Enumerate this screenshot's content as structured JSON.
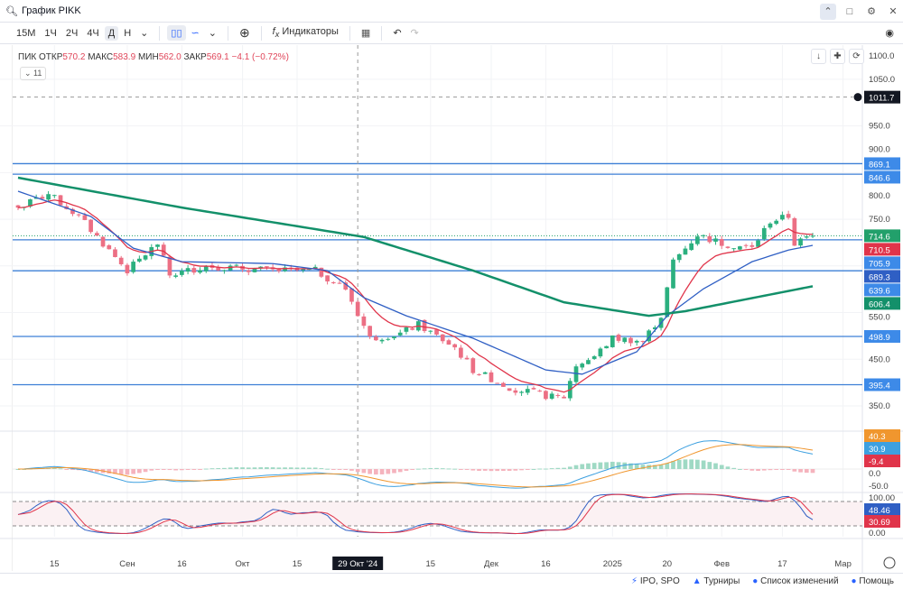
{
  "window": {
    "title": "График PIKK"
  },
  "toolbar": {
    "intervals": [
      "15М",
      "1Ч",
      "2Ч",
      "4Ч",
      "Д",
      "Н"
    ],
    "active_interval": "Д",
    "indicators_label": "Индикаторы"
  },
  "legend": {
    "symbol": "ПИК",
    "open_label": "ОТКР",
    "open": "570.2",
    "high_label": "МАКС",
    "high": "583.9",
    "low_label": "МИН",
    "low": "562.0",
    "close_label": "ЗАКР",
    "close": "569.1",
    "change": "−4.1 (−0.72%)",
    "collapse_count": "11"
  },
  "footer": {
    "items": [
      "IPO, SPO",
      "Турниры",
      "Список изменений",
      "Помощь"
    ]
  },
  "colors": {
    "up": "#2bb07f",
    "down": "#ec6f84",
    "level": "#3d7fd6",
    "ma_red": "#e0344a",
    "ma_blue": "#2f5fc4",
    "ma_green": "#13906a"
  },
  "chart_data": {
    "type": "candlestick",
    "symbol": "PIKK",
    "n_days": 132,
    "price_ylim": [
      350,
      1100
    ],
    "price_ticks": [
      "1100.0",
      "1050.0",
      "950.0",
      "900.0",
      "800.0",
      "750.0",
      "550.0",
      "450.0",
      "350.0"
    ],
    "close_path": [
      [
        0,
        775
      ],
      [
        5,
        804
      ],
      [
        10,
        756
      ],
      [
        18,
        640
      ],
      [
        23,
        698
      ],
      [
        25,
        630
      ],
      [
        31,
        650
      ],
      [
        42,
        640
      ],
      [
        49,
        640
      ],
      [
        54,
        601
      ],
      [
        58,
        495
      ],
      [
        63,
        505
      ],
      [
        66,
        524
      ],
      [
        72,
        475
      ],
      [
        75,
        427
      ],
      [
        81,
        389
      ],
      [
        88,
        369
      ],
      [
        90,
        369
      ],
      [
        92,
        437
      ],
      [
        95,
        456
      ],
      [
        98,
        495
      ],
      [
        103,
        489
      ],
      [
        106,
        543
      ],
      [
        108,
        659
      ],
      [
        112,
        717
      ],
      [
        116,
        698
      ],
      [
        121,
        688
      ],
      [
        124,
        746
      ],
      [
        127,
        756
      ],
      [
        128,
        698
      ],
      [
        131,
        714.6
      ]
    ],
    "ma_blue": [
      [
        0,
        810
      ],
      [
        12,
        756
      ],
      [
        19,
        688
      ],
      [
        27,
        659
      ],
      [
        42,
        655
      ],
      [
        51,
        640
      ],
      [
        57,
        582
      ],
      [
        64,
        543
      ],
      [
        75,
        495
      ],
      [
        87,
        427
      ],
      [
        93,
        418
      ],
      [
        102,
        466
      ],
      [
        107,
        543
      ],
      [
        113,
        601
      ],
      [
        121,
        659
      ],
      [
        127,
        684
      ],
      [
        131,
        694
      ]
    ],
    "ma_green": [
      [
        0,
        839
      ],
      [
        27,
        775
      ],
      [
        57,
        712
      ],
      [
        75,
        640
      ],
      [
        90,
        572
      ],
      [
        104,
        543
      ],
      [
        110,
        553
      ],
      [
        131,
        606.4
      ]
    ],
    "levels": [
      {
        "price": 869.1,
        "label": "869.1"
      },
      {
        "price": 846.6,
        "label": "846.6"
      },
      {
        "price": 705.9,
        "label": "705.9"
      },
      {
        "price": 639.6,
        "label": "639.6"
      },
      {
        "price": 498.9,
        "label": "498.9"
      },
      {
        "price": 395.4,
        "label": "395.4"
      }
    ],
    "price_labels": [
      {
        "price": 714.6,
        "label": "714.6",
        "color": "#22a06b"
      },
      {
        "price": 710.5,
        "label": "710.5",
        "color": "#e0344a"
      },
      {
        "price": 689.3,
        "label": "689.3",
        "color": "#2f5fc4"
      },
      {
        "price": 606.4,
        "label": "606.4",
        "color": "#13906a"
      }
    ],
    "crosshair": {
      "price_label": "1011.7",
      "price": 1011.7,
      "date_label": "29 Окт '24",
      "day": 56
    },
    "x_ticks": [
      [
        6,
        "15"
      ],
      [
        18,
        "Сен"
      ],
      [
        27,
        "16"
      ],
      [
        37,
        "Окт"
      ],
      [
        46,
        "15"
      ],
      [
        68,
        "15"
      ],
      [
        78,
        "Дек"
      ],
      [
        87,
        "16"
      ],
      [
        98,
        "2025"
      ],
      [
        107,
        "20"
      ],
      [
        116,
        "Фев"
      ],
      [
        126,
        "17"
      ],
      [
        136,
        "Мар"
      ]
    ],
    "macd": {
      "ticks": [
        "0.0",
        "-50.0"
      ],
      "labels": [
        {
          "v": "40.3",
          "color": "#f0962e"
        },
        {
          "v": "30.9",
          "color": "#3da0e0"
        },
        {
          "v": "-9.4",
          "color": "#e0344a"
        }
      ]
    },
    "stoch": {
      "ticks": [
        "100.00",
        "0.00"
      ],
      "bands": [
        80,
        20
      ],
      "labels": [
        {
          "v": "48.46",
          "color": "#2f5fc4"
        },
        {
          "v": "30.69",
          "color": "#e0344a"
        }
      ]
    }
  }
}
